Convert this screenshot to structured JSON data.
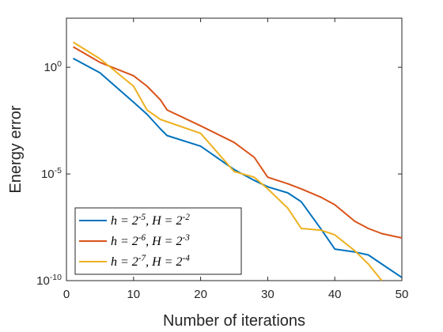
{
  "chart_data": {
    "type": "line",
    "xlabel": "Number of iterations",
    "ylabel": "Energy error",
    "x": [
      1,
      5,
      10,
      12,
      14,
      15,
      20,
      25,
      28,
      30,
      33,
      35,
      38,
      40,
      43,
      45,
      47,
      50
    ],
    "series": [
      {
        "name": "h = 2^{-5}, H = 2^{-2}",
        "color": "#0072BD",
        "values": [
          2.6,
          0.55,
          0.023,
          0.0063,
          0.0013,
          0.00063,
          0.0002,
          1.6e-05,
          5e-06,
          2.5e-06,
          1.3e-06,
          5e-07,
          2.5e-08,
          3e-09,
          2.2e-09,
          1.6e-09,
          6e-10,
          1.4e-10
        ]
      },
      {
        "name": "h = 2^{-6}, H = 2^{-3}",
        "color": "#D95319",
        "values": [
          9,
          1.7,
          0.4,
          0.13,
          0.03,
          0.01,
          0.0018,
          0.0003,
          6e-05,
          7e-06,
          3.5e-06,
          2e-06,
          8e-07,
          3.6e-07,
          6e-08,
          2.8e-08,
          1.6e-08,
          1e-08
        ]
      },
      {
        "name": "h = 2^{-7}, H = 2^{-4}",
        "color": "#EDB120",
        "values": [
          15,
          2.5,
          0.13,
          0.01,
          0.0036,
          0.0028,
          0.0008,
          1.3e-05,
          7e-06,
          2e-06,
          2.5e-07,
          2.8e-08,
          2.3e-08,
          1.4e-08,
          2.5e-09,
          6e-10,
          1e-10,
          null
        ]
      }
    ],
    "xlim": [
      0,
      50
    ],
    "xticks": [
      0,
      10,
      20,
      30,
      40,
      50
    ],
    "ylim": [
      1e-10,
      200
    ],
    "ylog": true,
    "yticks": [
      {
        "value": 1e-10,
        "label": "10^{-10}"
      },
      {
        "value": 1e-05,
        "label": "10^{-5}"
      },
      {
        "value": 1,
        "label": "10^{0}"
      }
    ],
    "legend": "lower left"
  }
}
